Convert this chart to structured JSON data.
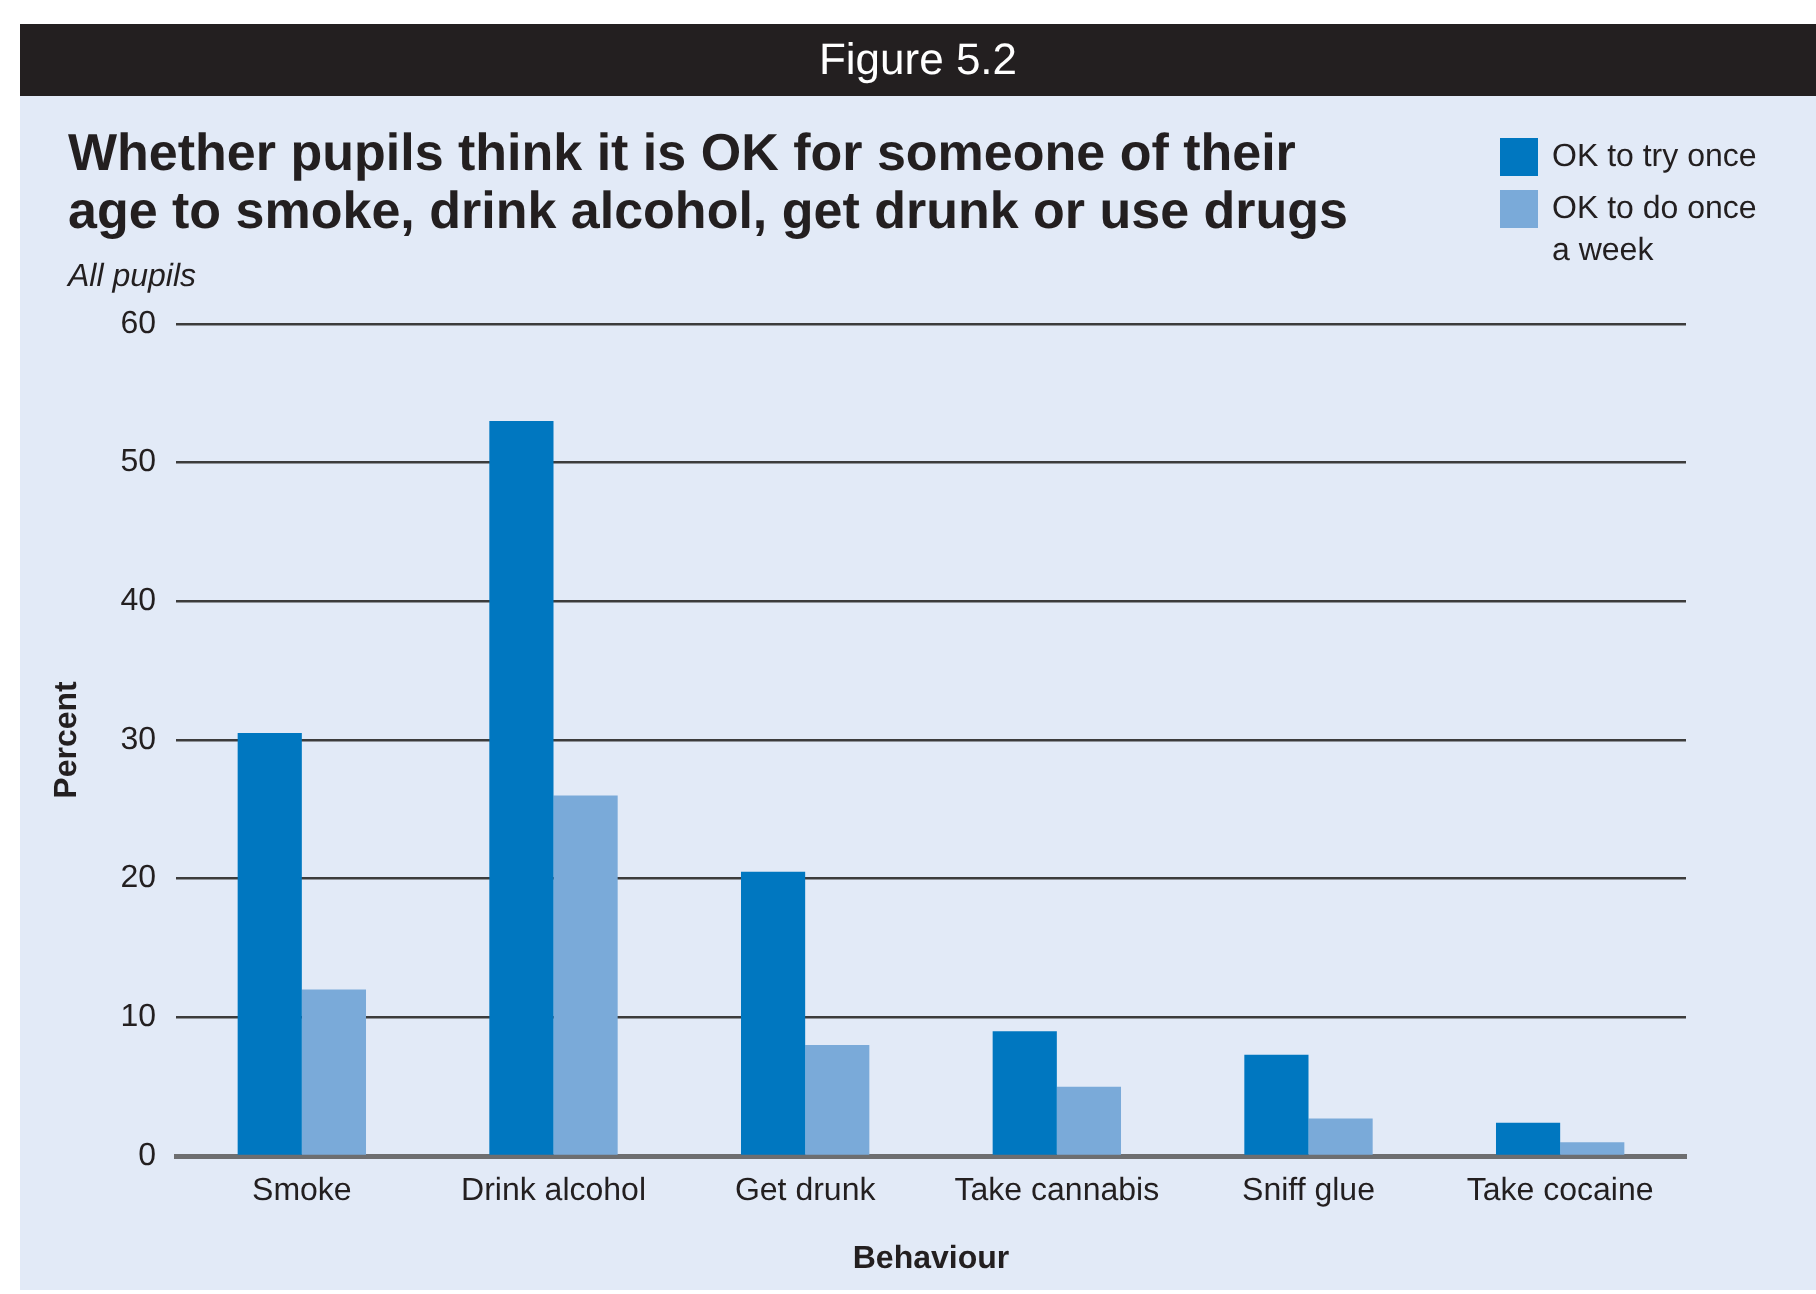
{
  "chart_data": {
    "type": "bar",
    "title": "Whether pupils think it is OK for someone of their age to smoke, drink alcohol, get drunk or use drugs",
    "subtitle": "All pupils",
    "xlabel": "Behaviour",
    "ylabel": "Percent",
    "annotations": [
      "Figure 5.2"
    ],
    "categories": [
      "Smoke",
      "Drink alcohol",
      "Get drunk",
      "Take cannabis",
      "Sniff glue",
      "Take cocaine"
    ],
    "series": [
      {
        "name": "OK to try once",
        "color": "#0077c0",
        "values": [
          30.5,
          53,
          20.5,
          9,
          7.3,
          2.4
        ]
      },
      {
        "name": "OK to do once a week",
        "color": "#7aaad9",
        "values": [
          12,
          26,
          8,
          5,
          2.7,
          1
        ]
      }
    ],
    "ylim": [
      0,
      60
    ],
    "yticks": [
      0,
      10,
      20,
      30,
      40,
      50,
      60
    ],
    "grid": "y",
    "legend": "top right"
  }
}
